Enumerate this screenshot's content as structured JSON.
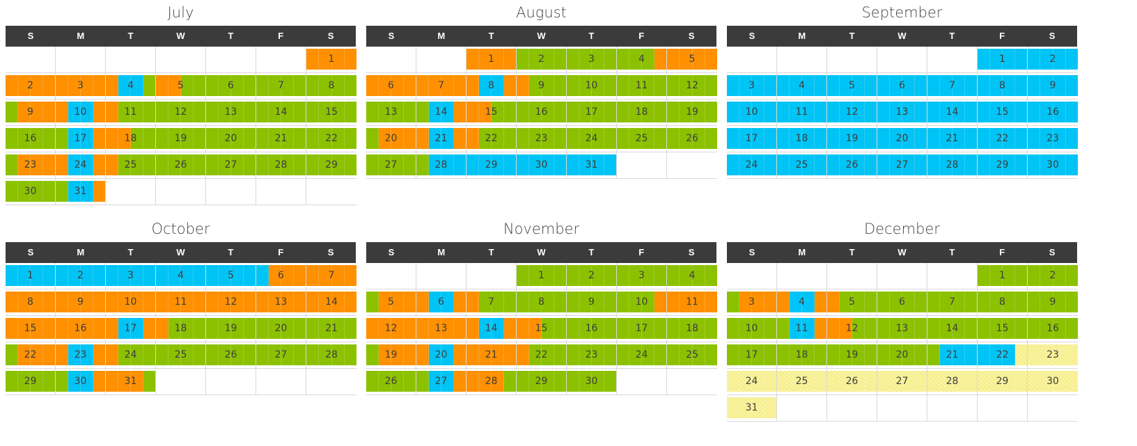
{
  "weekdays": [
    "S",
    "M",
    "T",
    "W",
    "T",
    "F",
    "S"
  ],
  "legend_colors": {
    "g": "#8cc100",
    "o": "#ff9000",
    "b": "#00c4f5",
    "y": "#fbf49c"
  },
  "months": [
    {
      "name": "July",
      "weeks": [
        [
          null,
          null,
          null,
          null,
          null,
          null,
          {
            "d": "1",
            "c": "oooo"
          }
        ],
        [
          {
            "d": "2",
            "c": "oooo"
          },
          {
            "d": "3",
            "c": "oooo"
          },
          {
            "d": "4",
            "c": "obbg"
          },
          {
            "d": "5",
            "c": "oogg"
          },
          {
            "d": "6",
            "c": "gggg"
          },
          {
            "d": "7",
            "c": "gggg"
          },
          {
            "d": "8",
            "c": "gggg"
          }
        ],
        [
          {
            "d": "9",
            "c": "gooo"
          },
          {
            "d": "10",
            "c": "obbo"
          },
          {
            "d": "11",
            "c": "oggg"
          },
          {
            "d": "12",
            "c": "gggg"
          },
          {
            "d": "13",
            "c": "gggg"
          },
          {
            "d": "14",
            "c": "gggg"
          },
          {
            "d": "15",
            "c": "gggg"
          }
        ],
        [
          {
            "d": "16",
            "c": "gggg"
          },
          {
            "d": "17",
            "c": "gbbo"
          },
          {
            "d": "18",
            "c": "oogg"
          },
          {
            "d": "19",
            "c": "gggg"
          },
          {
            "d": "20",
            "c": "gggg"
          },
          {
            "d": "21",
            "c": "gggg"
          },
          {
            "d": "22",
            "c": "gggg"
          }
        ],
        [
          {
            "d": "23",
            "c": "gooo"
          },
          {
            "d": "24",
            "c": "obbo"
          },
          {
            "d": "25",
            "c": "oggg"
          },
          {
            "d": "26",
            "c": "gggg"
          },
          {
            "d": "27",
            "c": "gggg"
          },
          {
            "d": "28",
            "c": "gggg"
          },
          {
            "d": "29",
            "c": "gggg"
          }
        ],
        [
          {
            "d": "30",
            "c": "gggg"
          },
          {
            "d": "31",
            "c": "gbbo"
          },
          null,
          null,
          null,
          null,
          null
        ]
      ]
    },
    {
      "name": "August",
      "weeks": [
        [
          null,
          null,
          {
            "d": "1",
            "c": "oooo"
          },
          {
            "d": "2",
            "c": "gggg"
          },
          {
            "d": "3",
            "c": "gggg"
          },
          {
            "d": "4",
            "c": "gggo"
          },
          {
            "d": "5",
            "c": "oooo"
          }
        ],
        [
          {
            "d": "6",
            "c": "oooo"
          },
          {
            "d": "7",
            "c": "oooo"
          },
          {
            "d": "8",
            "c": "obbo"
          },
          {
            "d": "9",
            "c": "oggg"
          },
          {
            "d": "10",
            "c": "gggg"
          },
          {
            "d": "11",
            "c": "gggg"
          },
          {
            "d": "12",
            "c": "gggg"
          }
        ],
        [
          {
            "d": "13",
            "c": "gggg"
          },
          {
            "d": "14",
            "c": "gbbo"
          },
          {
            "d": "15",
            "c": "oogg"
          },
          {
            "d": "16",
            "c": "gggg"
          },
          {
            "d": "17",
            "c": "gggg"
          },
          {
            "d": "18",
            "c": "gggg"
          },
          {
            "d": "19",
            "c": "gggg"
          }
        ],
        [
          {
            "d": "20",
            "c": "gooo"
          },
          {
            "d": "21",
            "c": "obbo"
          },
          {
            "d": "22",
            "c": "oggg"
          },
          {
            "d": "23",
            "c": "gggg"
          },
          {
            "d": "24",
            "c": "gggg"
          },
          {
            "d": "25",
            "c": "gggg"
          },
          {
            "d": "26",
            "c": "gggg"
          }
        ],
        [
          {
            "d": "27",
            "c": "gggg"
          },
          {
            "d": "28",
            "c": "gbbb"
          },
          {
            "d": "29",
            "c": "bbbb"
          },
          {
            "d": "30",
            "c": "bbbb"
          },
          {
            "d": "31",
            "c": "bbbb"
          },
          null,
          null
        ]
      ]
    },
    {
      "name": "September",
      "weeks": [
        [
          null,
          null,
          null,
          null,
          null,
          {
            "d": "1",
            "c": "bbbb"
          },
          {
            "d": "2",
            "c": "bbbb"
          }
        ],
        [
          {
            "d": "3",
            "c": "bbbb"
          },
          {
            "d": "4",
            "c": "bbbb"
          },
          {
            "d": "5",
            "c": "bbbb"
          },
          {
            "d": "6",
            "c": "bbbb"
          },
          {
            "d": "7",
            "c": "bbbb"
          },
          {
            "d": "8",
            "c": "bbbb"
          },
          {
            "d": "9",
            "c": "bbbb"
          }
        ],
        [
          {
            "d": "10",
            "c": "bbbb"
          },
          {
            "d": "11",
            "c": "bbbb"
          },
          {
            "d": "12",
            "c": "bbbb"
          },
          {
            "d": "13",
            "c": "bbbb"
          },
          {
            "d": "14",
            "c": "bbbb"
          },
          {
            "d": "15",
            "c": "bbbb"
          },
          {
            "d": "16",
            "c": "bbbb"
          }
        ],
        [
          {
            "d": "17",
            "c": "bbbb"
          },
          {
            "d": "18",
            "c": "bbbb"
          },
          {
            "d": "19",
            "c": "bbbb"
          },
          {
            "d": "20",
            "c": "bbbb"
          },
          {
            "d": "21",
            "c": "bbbb"
          },
          {
            "d": "22",
            "c": "bbbb"
          },
          {
            "d": "23",
            "c": "bbbb"
          }
        ],
        [
          {
            "d": "24",
            "c": "bbbb"
          },
          {
            "d": "25",
            "c": "bbbb"
          },
          {
            "d": "26",
            "c": "bbbb"
          },
          {
            "d": "27",
            "c": "bbbb"
          },
          {
            "d": "28",
            "c": "bbbb"
          },
          {
            "d": "29",
            "c": "bbbb"
          },
          {
            "d": "30",
            "c": "bbbb"
          }
        ]
      ]
    },
    {
      "name": "October",
      "weeks": [
        [
          {
            "d": "1",
            "c": "bbbb"
          },
          {
            "d": "2",
            "c": "bbbb"
          },
          {
            "d": "3",
            "c": "bbbb"
          },
          {
            "d": "4",
            "c": "bbbb"
          },
          {
            "d": "5",
            "c": "bbbb"
          },
          {
            "d": "6",
            "c": "booo"
          },
          {
            "d": "7",
            "c": "oooo"
          }
        ],
        [
          {
            "d": "8",
            "c": "oooo"
          },
          {
            "d": "9",
            "c": "oooo"
          },
          {
            "d": "10",
            "c": "oooo"
          },
          {
            "d": "11",
            "c": "oooo"
          },
          {
            "d": "12",
            "c": "oooo"
          },
          {
            "d": "13",
            "c": "oooo"
          },
          {
            "d": "14",
            "c": "oooo"
          }
        ],
        [
          {
            "d": "15",
            "c": "oooo"
          },
          {
            "d": "16",
            "c": "oooo"
          },
          {
            "d": "17",
            "c": "obbo"
          },
          {
            "d": "18",
            "c": "oggg"
          },
          {
            "d": "19",
            "c": "gggg"
          },
          {
            "d": "20",
            "c": "gggg"
          },
          {
            "d": "21",
            "c": "gggg"
          }
        ],
        [
          {
            "d": "22",
            "c": "gooo"
          },
          {
            "d": "23",
            "c": "obbo"
          },
          {
            "d": "24",
            "c": "oggg"
          },
          {
            "d": "25",
            "c": "gggg"
          },
          {
            "d": "26",
            "c": "gggg"
          },
          {
            "d": "27",
            "c": "gggg"
          },
          {
            "d": "28",
            "c": "gggg"
          }
        ],
        [
          {
            "d": "29",
            "c": "gggg"
          },
          {
            "d": "30",
            "c": "gbbo"
          },
          {
            "d": "31",
            "c": "ooog"
          },
          null,
          null,
          null,
          null
        ]
      ]
    },
    {
      "name": "November",
      "weeks": [
        [
          null,
          null,
          null,
          {
            "d": "1",
            "c": "gggg"
          },
          {
            "d": "2",
            "c": "gggg"
          },
          {
            "d": "3",
            "c": "gggg"
          },
          {
            "d": "4",
            "c": "gggg"
          }
        ],
        [
          {
            "d": "5",
            "c": "gooo"
          },
          {
            "d": "6",
            "c": "obbo"
          },
          {
            "d": "7",
            "c": "oggg"
          },
          {
            "d": "8",
            "c": "gggg"
          },
          {
            "d": "9",
            "c": "gggg"
          },
          {
            "d": "10",
            "c": "gggo"
          },
          {
            "d": "11",
            "c": "oooo"
          }
        ],
        [
          {
            "d": "12",
            "c": "oooo"
          },
          {
            "d": "13",
            "c": "oooo"
          },
          {
            "d": "14",
            "c": "obbo"
          },
          {
            "d": "15",
            "c": "oogg"
          },
          {
            "d": "16",
            "c": "gggg"
          },
          {
            "d": "17",
            "c": "gggg"
          },
          {
            "d": "18",
            "c": "gggg"
          }
        ],
        [
          {
            "d": "19",
            "c": "gooo"
          },
          {
            "d": "20",
            "c": "obbo"
          },
          {
            "d": "21",
            "c": "oooo"
          },
          {
            "d": "22",
            "c": "oggg"
          },
          {
            "d": "23",
            "c": "gggg"
          },
          {
            "d": "24",
            "c": "gggg"
          },
          {
            "d": "25",
            "c": "gggg"
          }
        ],
        [
          {
            "d": "26",
            "c": "gggg"
          },
          {
            "d": "27",
            "c": "gbbo"
          },
          {
            "d": "28",
            "c": "ooog"
          },
          {
            "d": "29",
            "c": "gggg"
          },
          {
            "d": "30",
            "c": "gggg"
          },
          null,
          null
        ]
      ]
    },
    {
      "name": "December",
      "weeks": [
        [
          null,
          null,
          null,
          null,
          null,
          {
            "d": "1",
            "c": "gggg"
          },
          {
            "d": "2",
            "c": "gggg"
          }
        ],
        [
          {
            "d": "3",
            "c": "gooo"
          },
          {
            "d": "4",
            "c": "obbo"
          },
          {
            "d": "5",
            "c": "oggg"
          },
          {
            "d": "6",
            "c": "gggg"
          },
          {
            "d": "7",
            "c": "gggg"
          },
          {
            "d": "8",
            "c": "gggg"
          },
          {
            "d": "9",
            "c": "gggg"
          }
        ],
        [
          {
            "d": "10",
            "c": "gggg"
          },
          {
            "d": "11",
            "c": "gbbo"
          },
          {
            "d": "12",
            "c": "oogg"
          },
          {
            "d": "13",
            "c": "gggg"
          },
          {
            "d": "14",
            "c": "gggg"
          },
          {
            "d": "15",
            "c": "gggg"
          },
          {
            "d": "16",
            "c": "gggg"
          }
        ],
        [
          {
            "d": "17",
            "c": "gggg"
          },
          {
            "d": "18",
            "c": "gggg"
          },
          {
            "d": "19",
            "c": "gggg"
          },
          {
            "d": "20",
            "c": "gggg"
          },
          {
            "d": "21",
            "c": "gbbb"
          },
          {
            "d": "22",
            "c": "bbby"
          },
          {
            "d": "23",
            "c": "yyyy"
          }
        ],
        [
          {
            "d": "24",
            "c": "yyyy"
          },
          {
            "d": "25",
            "c": "yyyy"
          },
          {
            "d": "26",
            "c": "yyyy"
          },
          {
            "d": "27",
            "c": "yyyy"
          },
          {
            "d": "28",
            "c": "yyyy"
          },
          {
            "d": "29",
            "c": "yyyy"
          },
          {
            "d": "30",
            "c": "yyyy"
          }
        ],
        [
          {
            "d": "31",
            "c": "yyyy"
          },
          null,
          null,
          null,
          null,
          null,
          null
        ]
      ]
    }
  ]
}
